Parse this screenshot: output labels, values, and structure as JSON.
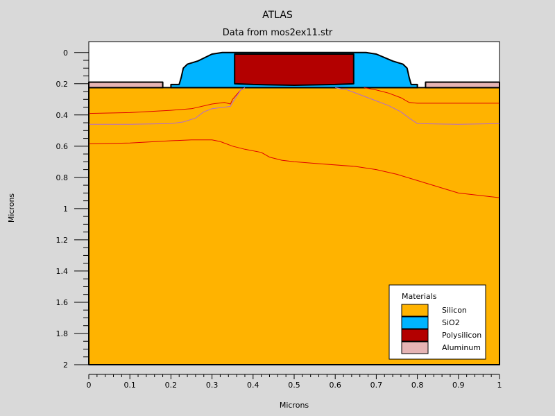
{
  "chart_data": {
    "type": "area",
    "title": "ATLAS",
    "subtitle": "Data from mos2ex11.str",
    "xlabel": "Microns",
    "ylabel": "Microns",
    "xlim": [
      0,
      1
    ],
    "ylim": [
      2,
      -0.07
    ],
    "y_inverted": true,
    "grid": false,
    "x_ticks": [
      "0",
      "0.1",
      "0.2",
      "0.3",
      "0.4",
      "0.5",
      "0.6",
      "0.7",
      "0.8",
      "0.9",
      "1"
    ],
    "x_tick_values": [
      0,
      0.1,
      0.2,
      0.3,
      0.4,
      0.5,
      0.6,
      0.7,
      0.8,
      0.9,
      1
    ],
    "y_ticks": [
      "0",
      "0.2",
      "0.4",
      "0.6",
      "0.8",
      "1",
      "1.2",
      "1.4",
      "1.6",
      "1.8",
      "2"
    ],
    "y_tick_values": [
      0,
      0.2,
      0.4,
      0.6,
      0.8,
      1,
      1.2,
      1.4,
      1.6,
      1.8,
      2
    ],
    "colors": {
      "background": "#d9d9d9",
      "plot_bg": "#ffffff",
      "silicon": "#ffb300",
      "sio2": "#00b4ff",
      "polysilicon": "#b30000",
      "aluminum": "#e6b4b4",
      "junction": "#e00000",
      "contour": "#b06ad0"
    },
    "legend": {
      "title": "Materials",
      "placement": "bottom-right",
      "items": [
        {
          "label": "Silicon",
          "color": "#ffb300"
        },
        {
          "label": "SiO2",
          "color": "#00b4ff"
        },
        {
          "label": "Polysilicon",
          "color": "#b30000"
        },
        {
          "label": "Aluminum",
          "color": "#e6b4b4"
        }
      ]
    },
    "regions": [
      {
        "material": "Silicon",
        "color": "#ffb300",
        "points": [
          [
            0,
            0.225
          ],
          [
            1,
            0.225
          ],
          [
            1,
            2
          ],
          [
            0,
            2
          ]
        ]
      },
      {
        "material": "SiO2",
        "color": "#00b4ff",
        "points": [
          [
            0.2,
            0.225
          ],
          [
            0.2,
            0.205
          ],
          [
            0.22,
            0.205
          ],
          [
            0.225,
            0.16
          ],
          [
            0.23,
            0.1
          ],
          [
            0.24,
            0.075
          ],
          [
            0.265,
            0.055
          ],
          [
            0.3,
            0.01
          ],
          [
            0.325,
            0.0
          ],
          [
            0.675,
            0.0
          ],
          [
            0.7,
            0.01
          ],
          [
            0.74,
            0.055
          ],
          [
            0.765,
            0.075
          ],
          [
            0.775,
            0.1
          ],
          [
            0.78,
            0.16
          ],
          [
            0.785,
            0.205
          ],
          [
            0.8,
            0.205
          ],
          [
            0.8,
            0.225
          ]
        ]
      },
      {
        "material": "Polysilicon",
        "color": "#b30000",
        "points": [
          [
            0.355,
            0.01
          ],
          [
            0.645,
            0.01
          ],
          [
            0.645,
            0.2
          ],
          [
            0.6,
            0.205
          ],
          [
            0.5,
            0.21
          ],
          [
            0.4,
            0.205
          ],
          [
            0.355,
            0.2
          ]
        ]
      },
      {
        "material": "Aluminum",
        "color": "#e6b4b4",
        "points": [
          [
            0,
            0.19
          ],
          [
            0.18,
            0.19
          ],
          [
            0.18,
            0.225
          ],
          [
            0,
            0.225
          ]
        ]
      },
      {
        "material": "Aluminum",
        "color": "#e6b4b4",
        "points": [
          [
            0.82,
            0.19
          ],
          [
            1,
            0.19
          ],
          [
            1,
            0.225
          ],
          [
            0.82,
            0.225
          ]
        ]
      }
    ],
    "lines": [
      {
        "color": "#e00000",
        "points": [
          [
            0,
            0.39
          ],
          [
            0.1,
            0.385
          ],
          [
            0.2,
            0.37
          ],
          [
            0.25,
            0.36
          ],
          [
            0.3,
            0.33
          ],
          [
            0.33,
            0.32
          ],
          [
            0.345,
            0.33
          ],
          [
            0.35,
            0.3
          ],
          [
            0.36,
            0.27
          ],
          [
            0.37,
            0.24
          ],
          [
            0.38,
            0.225
          ]
        ]
      },
      {
        "color": "#e00000",
        "points": [
          [
            0.67,
            0.225
          ],
          [
            0.7,
            0.24
          ],
          [
            0.73,
            0.26
          ],
          [
            0.76,
            0.29
          ],
          [
            0.78,
            0.32
          ],
          [
            0.8,
            0.325
          ],
          [
            1,
            0.325
          ]
        ]
      },
      {
        "color": "#b06ad0",
        "points": [
          [
            0,
            0.46
          ],
          [
            0.1,
            0.46
          ],
          [
            0.2,
            0.455
          ],
          [
            0.23,
            0.445
          ],
          [
            0.26,
            0.42
          ],
          [
            0.28,
            0.38
          ],
          [
            0.3,
            0.36
          ],
          [
            0.33,
            0.35
          ],
          [
            0.345,
            0.345
          ],
          [
            0.35,
            0.32
          ],
          [
            0.36,
            0.28
          ],
          [
            0.37,
            0.24
          ],
          [
            0.38,
            0.225
          ]
        ]
      },
      {
        "color": "#b06ad0",
        "points": [
          [
            0.6,
            0.225
          ],
          [
            0.63,
            0.24
          ],
          [
            0.66,
            0.27
          ],
          [
            0.7,
            0.31
          ],
          [
            0.73,
            0.34
          ],
          [
            0.76,
            0.38
          ],
          [
            0.78,
            0.42
          ],
          [
            0.8,
            0.455
          ],
          [
            0.9,
            0.46
          ],
          [
            1,
            0.455
          ]
        ]
      },
      {
        "color": "#e00000",
        "points": [
          [
            0,
            0.585
          ],
          [
            0.1,
            0.58
          ],
          [
            0.2,
            0.565
          ],
          [
            0.25,
            0.56
          ],
          [
            0.3,
            0.56
          ],
          [
            0.32,
            0.57
          ],
          [
            0.35,
            0.6
          ],
          [
            0.38,
            0.62
          ],
          [
            0.42,
            0.64
          ],
          [
            0.44,
            0.67
          ],
          [
            0.47,
            0.69
          ],
          [
            0.5,
            0.7
          ],
          [
            0.55,
            0.71
          ],
          [
            0.65,
            0.73
          ],
          [
            0.7,
            0.75
          ],
          [
            0.75,
            0.78
          ],
          [
            0.8,
            0.82
          ],
          [
            0.85,
            0.86
          ],
          [
            0.9,
            0.9
          ],
          [
            1,
            0.93
          ]
        ]
      }
    ]
  }
}
